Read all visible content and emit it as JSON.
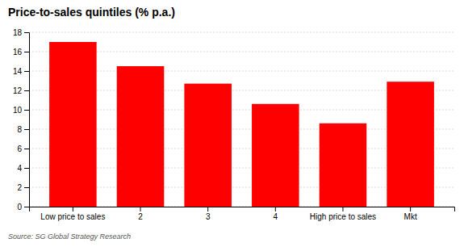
{
  "chart_data": {
    "type": "bar",
    "title": "Price-to-sales quintiles (% p.a.)",
    "categories": [
      "Low price to sales",
      "2",
      "3",
      "4",
      "High price to sales",
      "Mkt"
    ],
    "values": [
      17.0,
      14.5,
      12.7,
      10.6,
      8.6,
      12.9
    ],
    "color": "#FF0000",
    "ylim": [
      0,
      18
    ],
    "yticks": [
      0,
      2,
      4,
      6,
      8,
      10,
      12,
      14,
      16,
      18
    ],
    "grid": true,
    "annotations": [
      "Source: SG Global Strategy Research"
    ]
  }
}
